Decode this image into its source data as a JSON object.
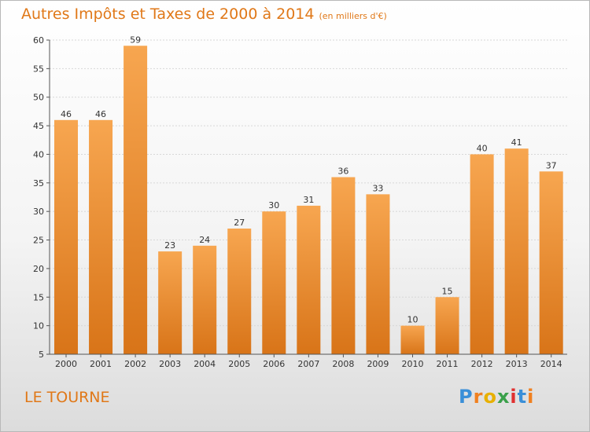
{
  "chart_data": {
    "type": "bar",
    "title": "Autres Impôts et Taxes de 2000 à 2014",
    "subtitle": "(en milliers d'€)",
    "categories": [
      "2000",
      "2001",
      "2002",
      "2003",
      "2004",
      "2005",
      "2006",
      "2007",
      "2008",
      "2009",
      "2010",
      "2011",
      "2012",
      "2013",
      "2014"
    ],
    "values": [
      46,
      46,
      59,
      23,
      24,
      27,
      30,
      31,
      36,
      33,
      10,
      15,
      40,
      41,
      37
    ],
    "ylim": [
      5,
      60
    ],
    "yticks": [
      5,
      10,
      15,
      20,
      25,
      30,
      35,
      40,
      45,
      50,
      55,
      60
    ],
    "grid": true,
    "bar_color": "#f0922c"
  },
  "commune": "LE TOURNE",
  "logo": {
    "text": "Proxiti",
    "letters": [
      "P",
      "r",
      "o",
      "x",
      "i",
      "t",
      "i"
    ],
    "colors": [
      "#3a8fd8",
      "#f08020",
      "#e8b000",
      "#3aa04a",
      "#e03030",
      "#3a8fd8",
      "#f08020"
    ]
  }
}
